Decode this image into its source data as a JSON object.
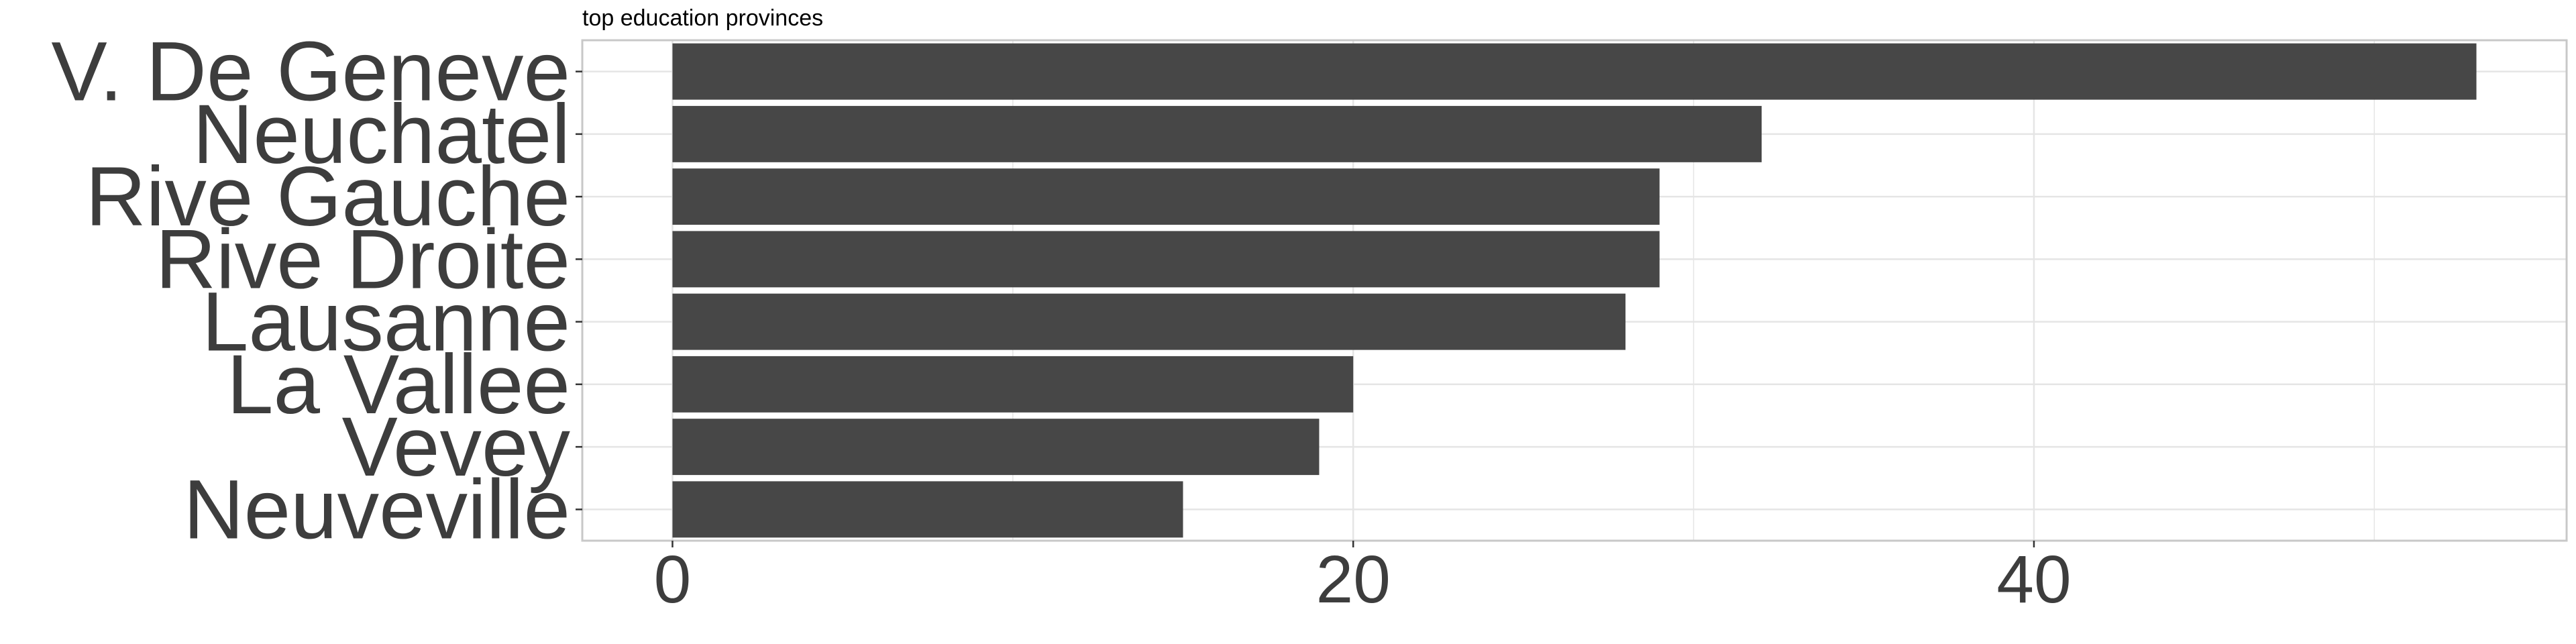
{
  "chart_data": {
    "type": "bar",
    "orientation": "horizontal",
    "title": "top education provinces",
    "xlabel": "",
    "ylabel": "",
    "categories": [
      "V. De Geneve",
      "Neuchatel",
      "Rive Gauche",
      "Rive Droite",
      "Lausanne",
      "La Vallee",
      "Vevey",
      "Neuveville"
    ],
    "values": [
      53,
      32,
      29,
      29,
      28,
      20,
      19,
      15
    ],
    "xlim": [
      -2.65,
      55.65
    ],
    "xticks": [
      0,
      20,
      40
    ],
    "grid": true,
    "legend": "none",
    "bar_color": "#474747",
    "grid_color": "#e5e5e5",
    "border_color": "#c8c8c8",
    "text_color": "#3d3d3d"
  }
}
